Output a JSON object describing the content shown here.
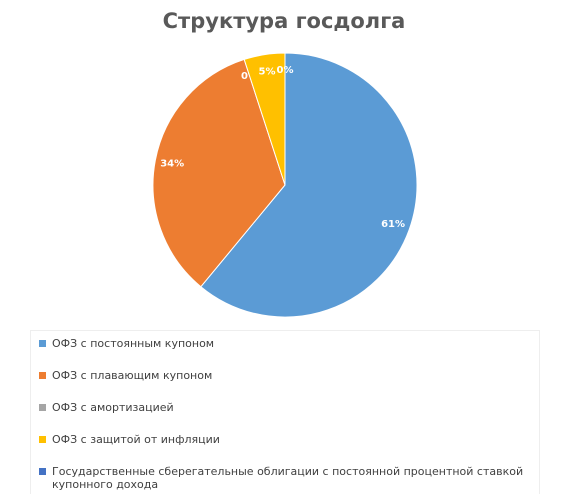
{
  "chart_data": {
    "type": "pie",
    "title": "Структура госдолга",
    "categories": [
      "ОФЗ с постоянным купоном",
      "ОФЗ с плавающим купоном",
      "ОФЗ с амортизацией",
      "ОФЗ с защитой от инфляции",
      "Государственные сберегательные облигации с постоянной процентной ставкой купонного дохода"
    ],
    "values": [
      61,
      34,
      0,
      5,
      0
    ],
    "value_labels": [
      "61%",
      "34%",
      "0%",
      "5%",
      "0%"
    ],
    "colors": [
      "#5b9bd5",
      "#ed7d31",
      "#a5a5a5",
      "#ffc000",
      "#4472c4"
    ],
    "legend": "bottom"
  }
}
